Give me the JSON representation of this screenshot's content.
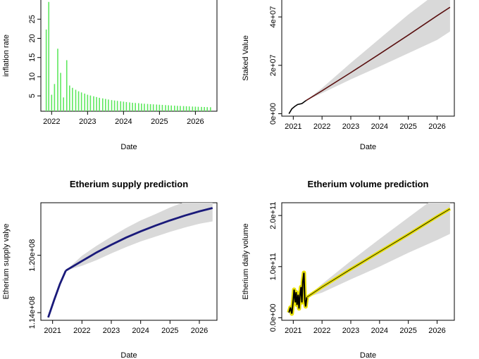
{
  "chart_data": [
    {
      "type": "bar",
      "title": "",
      "xlabel": "Date",
      "ylabel": "inflation rate",
      "x_ticks": [
        "2022",
        "2023",
        "2024",
        "2025",
        "2026"
      ],
      "y_ticks": [
        "5",
        "10",
        "15",
        "20",
        "25"
      ],
      "xlim": [
        2021.7,
        2026.6
      ],
      "ylim": [
        1,
        30
      ],
      "bar_color": "#5ee85e",
      "x": [
        2021.85,
        2021.92,
        2022.0,
        2022.08,
        2022.17,
        2022.25,
        2022.33,
        2022.42,
        2022.5,
        2022.58,
        2022.67,
        2022.75,
        2022.83,
        2022.92,
        2023.0,
        2023.08,
        2023.17,
        2023.25,
        2023.33,
        2023.42,
        2023.5,
        2023.58,
        2023.67,
        2023.75,
        2023.83,
        2023.92,
        2024.0,
        2024.08,
        2024.17,
        2024.25,
        2024.33,
        2024.42,
        2024.5,
        2024.58,
        2024.67,
        2024.75,
        2024.83,
        2024.92,
        2025.0,
        2025.08,
        2025.17,
        2025.25,
        2025.33,
        2025.42,
        2025.5,
        2025.58,
        2025.67,
        2025.75,
        2025.83,
        2025.92,
        2026.0,
        2026.08,
        2026.17,
        2026.25,
        2026.33,
        2026.42
      ],
      "values": [
        22.3,
        29.5,
        5.3,
        8.1,
        17.3,
        11.0,
        4.6,
        14.3,
        7.7,
        7.1,
        6.6,
        6.2,
        5.9,
        5.6,
        5.3,
        5.1,
        4.9,
        4.7,
        4.5,
        4.35,
        4.2,
        4.05,
        3.9,
        3.8,
        3.7,
        3.6,
        3.5,
        3.4,
        3.3,
        3.2,
        3.15,
        3.1,
        3.0,
        2.95,
        2.9,
        2.85,
        2.8,
        2.75,
        2.7,
        2.65,
        2.6,
        2.55,
        2.5,
        2.45,
        2.4,
        2.37,
        2.34,
        2.3,
        2.26,
        2.22,
        2.19,
        2.16,
        2.13,
        2.1,
        2.07,
        2.04
      ]
    },
    {
      "type": "line",
      "title": "",
      "xlabel": "Date",
      "ylabel": "Staked Value",
      "x_ticks": [
        "2021",
        "2022",
        "2023",
        "2024",
        "2025",
        "2026"
      ],
      "y_ticks": [
        "0e+00",
        "2e+07",
        "4e+07"
      ],
      "xlim": [
        2020.6,
        2026.6
      ],
      "ylim": [
        -1000000,
        47000000
      ],
      "line_color": "#5a1010",
      "band_color": "#d9d9d9",
      "observed": {
        "x": [
          2020.85,
          2020.95,
          2021.05,
          2021.15,
          2021.3,
          2021.45
        ],
        "y": [
          0,
          2000000,
          3000000,
          3800000,
          4200000,
          5500000
        ]
      },
      "forecast": {
        "x": [
          2021.45,
          2022.0,
          2023.0,
          2024.0,
          2025.0,
          2026.0,
          2026.45
        ],
        "y": [
          5500000,
          9500000,
          17000000,
          24700000,
          32500000,
          40500000,
          44000000
        ],
        "upper": [
          5500000,
          10600000,
          21000000,
          31000000,
          41000000,
          50000000,
          54000000
        ],
        "lower": [
          5500000,
          8500000,
          14200000,
          19500000,
          25000000,
          30500000,
          34000000
        ]
      }
    },
    {
      "type": "line",
      "title": "Etherium supply prediction",
      "xlabel": "Date",
      "ylabel": "Etherium supply valye",
      "x_ticks": [
        "2021",
        "2022",
        "2023",
        "2024",
        "2025",
        "2026"
      ],
      "y_ticks": [
        "1.14e+08",
        "1.20e+08"
      ],
      "xlim": [
        2020.6,
        2026.6
      ],
      "ylim": [
        113200000,
        125500000
      ],
      "line_color": "#1a1a7a",
      "band_color": "#d9d9d9",
      "observed": {
        "x": [
          2020.85,
          2021.05,
          2021.25,
          2021.45
        ],
        "y": [
          113500000,
          115300000,
          117000000,
          118400000
        ]
      },
      "forecast": {
        "x": [
          2021.45,
          2022.0,
          2022.5,
          2023.0,
          2023.5,
          2024.0,
          2024.5,
          2025.0,
          2025.5,
          2026.0,
          2026.45
        ],
        "y": [
          118400000,
          119400000,
          120300000,
          121100000,
          121850000,
          122500000,
          123100000,
          123650000,
          124150000,
          124600000,
          124950000
        ],
        "upper": [
          118400000,
          119950000,
          121000000,
          121950000,
          122850000,
          123650000,
          124300000,
          125000000,
          125600000,
          126150000,
          126600000
        ],
        "lower": [
          118400000,
          118900000,
          119500000,
          120200000,
          120850000,
          121450000,
          121950000,
          122450000,
          122900000,
          123300000,
          123550000
        ]
      }
    },
    {
      "type": "line",
      "title": "Etherium volume prediction",
      "xlabel": "Date",
      "ylabel": "Etherium daily volume",
      "x_ticks": [
        "2021",
        "2022",
        "2023",
        "2024",
        "2025",
        "2026"
      ],
      "y_ticks": [
        "0.0e+00",
        "1.0e+11",
        "2.0e+11"
      ],
      "xlim": [
        2020.6,
        2026.6
      ],
      "ylim": [
        -5000000000,
        225000000000
      ],
      "line_color": "#e8e000",
      "observed_color": "#000000",
      "band_color": "#d9d9d9",
      "observed": {
        "x": [
          2020.85,
          2020.9,
          2020.95,
          2021.0,
          2021.03,
          2021.07,
          2021.1,
          2021.13,
          2021.17,
          2021.2,
          2021.23,
          2021.27,
          2021.3,
          2021.33,
          2021.37,
          2021.4,
          2021.43,
          2021.47
        ],
        "y": [
          10000000000,
          20000000000,
          8000000000,
          35000000000,
          55000000000,
          30000000000,
          50000000000,
          25000000000,
          45000000000,
          18000000000,
          42000000000,
          60000000000,
          30000000000,
          70000000000,
          88000000000,
          35000000000,
          22000000000,
          40000000000
        ]
      },
      "forecast": {
        "x": [
          2021.47,
          2022.0,
          2023.0,
          2024.0,
          2025.0,
          2026.0,
          2026.45
        ],
        "y": [
          40000000000,
          60000000000,
          95000000000,
          129000000000,
          163000000000,
          198000000000,
          213000000000
        ],
        "upper": [
          40000000000,
          66000000000,
          111000000000,
          154000000000,
          196000000000,
          238000000000,
          254000000000
        ],
        "lower": [
          40000000000,
          49000000000,
          75000000000,
          100000000000,
          127000000000,
          152000000000,
          164000000000
        ]
      }
    }
  ]
}
